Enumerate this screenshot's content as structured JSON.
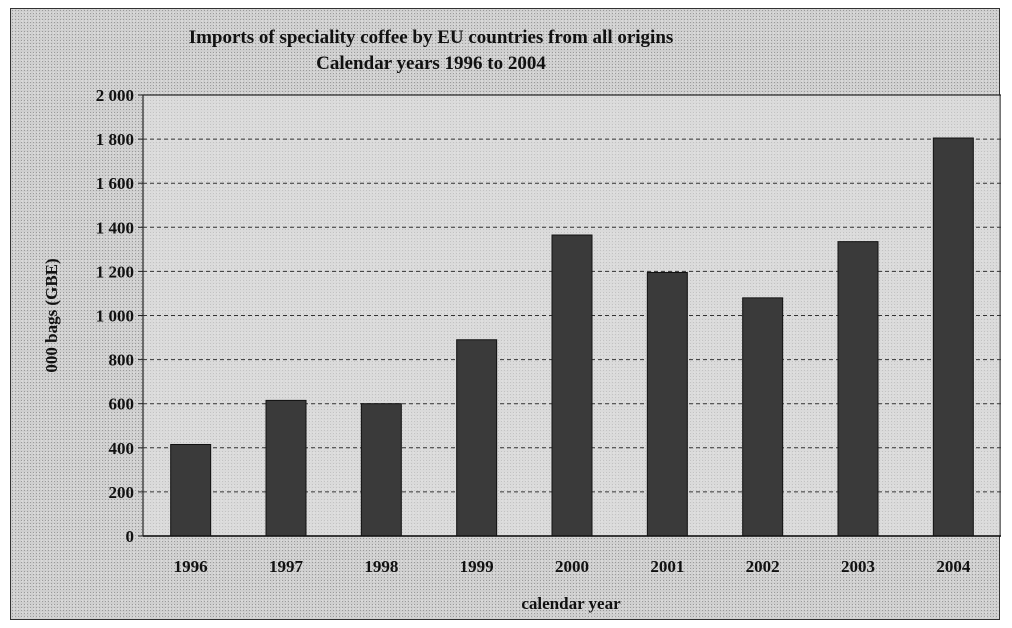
{
  "chart_data": {
    "type": "bar",
    "title": "Imports of speciality coffee by EU countries from all origins",
    "subtitle": "Calendar years 1996 to 2004",
    "xlabel": "calendar year",
    "ylabel": "000 bags (GBE)",
    "categories": [
      "1996",
      "1997",
      "1998",
      "1999",
      "2000",
      "2001",
      "2002",
      "2003",
      "2004"
    ],
    "values": [
      415,
      615,
      600,
      890,
      1365,
      1195,
      1080,
      1335,
      1805
    ],
    "ylim": [
      0,
      2000
    ],
    "yticks": [
      0,
      200,
      400,
      600,
      800,
      1000,
      1200,
      1400,
      1600,
      1800,
      2000
    ],
    "ytick_labels": [
      "0",
      "200",
      "400",
      "600",
      "800",
      "1 000",
      "1 200",
      "1 400",
      "1 600",
      "1 800",
      "2 000"
    ],
    "grid": true,
    "legend": "none",
    "colors": {
      "bar": "#3a3a3a",
      "plot_background": "#e4e4e4",
      "grid": "#333333"
    }
  }
}
